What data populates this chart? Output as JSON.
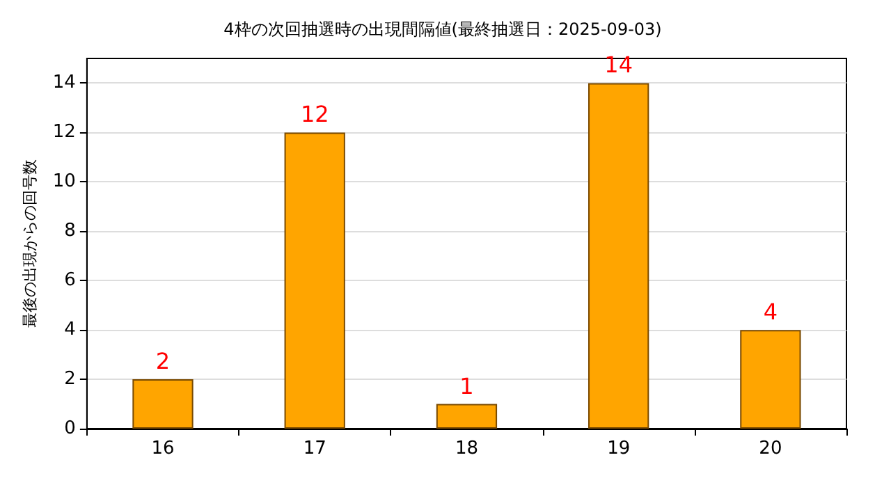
{
  "chart_data": {
    "type": "bar",
    "title": "4枠の次回抽選時の出現間隔値(最終抽選日：2025-09-03)",
    "ylabel": "最後の出現からの回号数",
    "categories": [
      "16",
      "17",
      "18",
      "19",
      "20"
    ],
    "values": [
      2,
      12,
      1,
      14,
      4
    ],
    "color": "#ffa500",
    "ylim": [
      0,
      15
    ],
    "yticks": [
      0,
      2,
      4,
      6,
      8,
      10,
      12,
      14
    ],
    "grid": "y",
    "data_labels": true
  }
}
